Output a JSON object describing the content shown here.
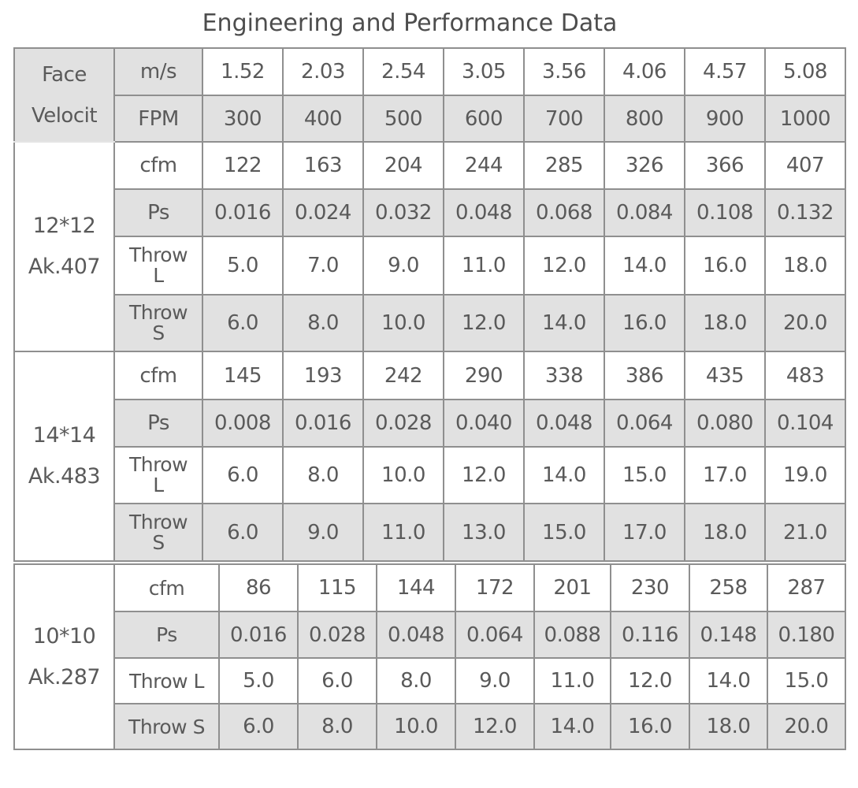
{
  "title": "Engineering and Performance Data",
  "face_velocity_label": "Face\nVelocit",
  "header_rows": [
    {
      "label": "m/s",
      "values": [
        "1.52",
        "2.03",
        "2.54",
        "3.05",
        "3.56",
        "4.06",
        "4.57",
        "5.08"
      ]
    },
    {
      "label": "FPM",
      "values": [
        "300",
        "400",
        "500",
        "600",
        "700",
        "800",
        "900",
        "1000"
      ]
    }
  ],
  "groups": [
    {
      "label": "12*12\nAk.407",
      "rows": [
        {
          "label": "cfm",
          "values": [
            "122",
            "163",
            "204",
            "244",
            "285",
            "326",
            "366",
            "407"
          ]
        },
        {
          "label": "Ps",
          "values": [
            "0.016",
            "0.024",
            "0.032",
            "0.048",
            "0.068",
            "0.084",
            "0.108",
            "0.132"
          ]
        },
        {
          "label": "Throw\nL",
          "values": [
            "5.0",
            "7.0",
            "9.0",
            "11.0",
            "12.0",
            "14.0",
            "16.0",
            "18.0"
          ]
        },
        {
          "label": "Throw\nS",
          "values": [
            "6.0",
            "8.0",
            "10.0",
            "12.0",
            "14.0",
            "16.0",
            "18.0",
            "20.0"
          ]
        }
      ]
    },
    {
      "label": "14*14\nAk.483",
      "rows": [
        {
          "label": "cfm",
          "values": [
            "145",
            "193",
            "242",
            "290",
            "338",
            "386",
            "435",
            "483"
          ]
        },
        {
          "label": "Ps",
          "values": [
            "0.008",
            "0.016",
            "0.028",
            "0.040",
            "0.048",
            "0.064",
            "0.080",
            "0.104"
          ]
        },
        {
          "label": "Throw\nL",
          "values": [
            "6.0",
            "8.0",
            "10.0",
            "12.0",
            "14.0",
            "15.0",
            "17.0",
            "19.0"
          ]
        },
        {
          "label": "Throw\nS",
          "values": [
            "6.0",
            "9.0",
            "11.0",
            "13.0",
            "15.0",
            "17.0",
            "18.0",
            "21.0"
          ]
        }
      ]
    },
    {
      "label": "10*10\nAk.287",
      "rows": [
        {
          "label": "cfm",
          "values": [
            "86",
            "115",
            "144",
            "172",
            "201",
            "230",
            "258",
            "287"
          ]
        },
        {
          "label": "Ps",
          "values": [
            "0.016",
            "0.028",
            "0.048",
            "0.064",
            "0.088",
            "0.116",
            "0.148",
            "0.180"
          ]
        },
        {
          "label": "Throw L",
          "values": [
            "5.0",
            "6.0",
            "8.0",
            "9.0",
            "11.0",
            "12.0",
            "14.0",
            "15.0"
          ]
        },
        {
          "label": "Throw S",
          "values": [
            "6.0",
            "8.0",
            "10.0",
            "12.0",
            "14.0",
            "16.0",
            "18.0",
            "20.0"
          ]
        }
      ]
    }
  ],
  "colors": {
    "border": "#8f8f8f",
    "shade": "#e1e1e1",
    "text": "#5a5a5a"
  }
}
